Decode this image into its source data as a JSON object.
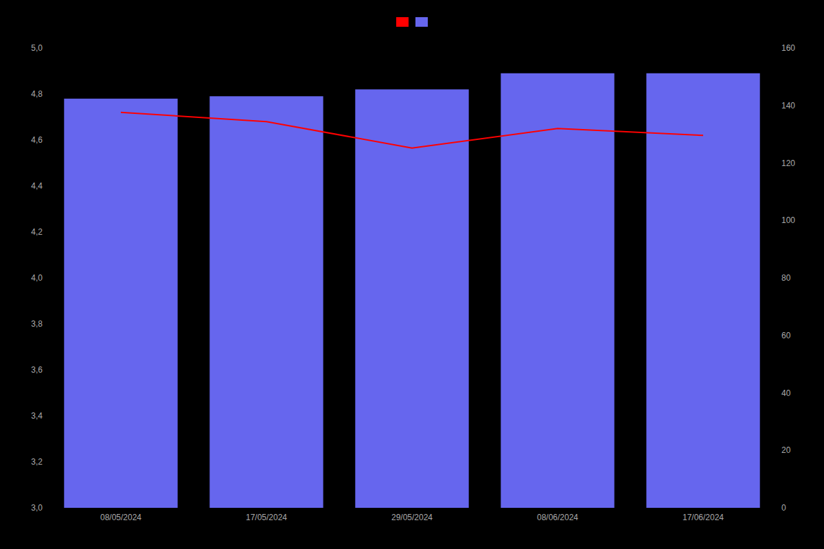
{
  "chart_data": {
    "type": "bar",
    "categories": [
      "08/05/2024",
      "17/05/2024",
      "29/05/2024",
      "08/06/2024",
      "17/06/2024"
    ],
    "series": [
      {
        "type": "line",
        "color": "#ff0000",
        "values": [
          4.72,
          4.68,
          4.565,
          4.65,
          4.62
        ]
      },
      {
        "type": "bar",
        "color": "#6666ee",
        "values": [
          4.78,
          4.79,
          4.82,
          4.89,
          4.89
        ]
      }
    ],
    "ylim": [
      3.0,
      5.0
    ],
    "yticks": [
      {
        "value": 3.0,
        "label": "3,0"
      },
      {
        "value": 3.2,
        "label": "3,2"
      },
      {
        "value": 3.4,
        "label": "3,4"
      },
      {
        "value": 3.6,
        "label": "3,6"
      },
      {
        "value": 3.8,
        "label": "3,8"
      },
      {
        "value": 4.0,
        "label": "4,0"
      },
      {
        "value": 4.2,
        "label": "4,2"
      },
      {
        "value": 4.4,
        "label": "4,4"
      },
      {
        "value": 4.6,
        "label": "4,6"
      },
      {
        "value": 4.8,
        "label": "4,8"
      },
      {
        "value": 5.0,
        "label": "5,0"
      }
    ],
    "y2lim": [
      0,
      160
    ],
    "y2ticks": [
      0,
      20,
      40,
      60,
      80,
      100,
      120,
      140,
      160
    ],
    "grid": false,
    "legend": "top"
  }
}
